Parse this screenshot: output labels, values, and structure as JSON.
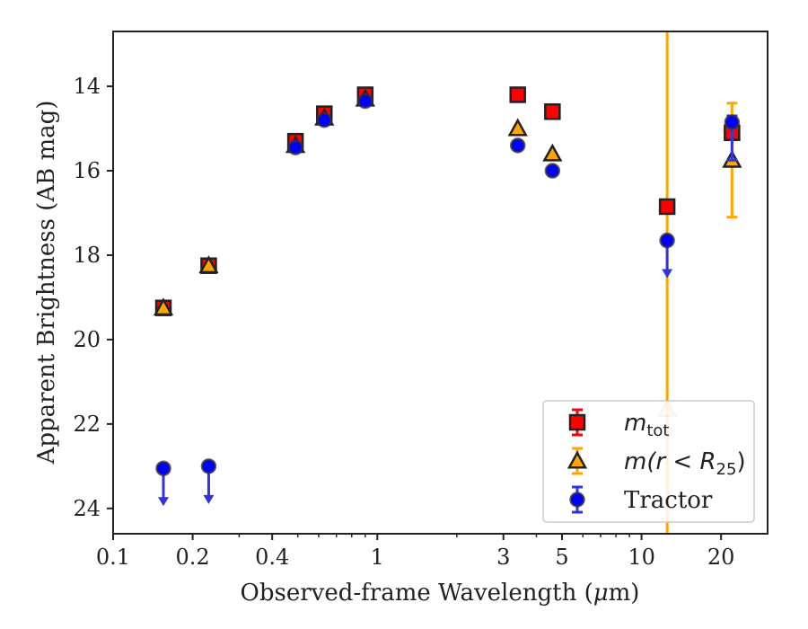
{
  "chart_data": {
    "type": "scatter",
    "xlabel_prefix": "Observed-frame Wavelength (",
    "xlabel_unit": "μ",
    "xlabel_suffix": "m)",
    "ylabel": "Apparent Brightness (AB mag)",
    "x_scale": "log",
    "xlim": [
      0.1,
      30
    ],
    "ylim": [
      24.6,
      12.7
    ],
    "y_inverted": true,
    "xticks": [
      0.1,
      0.2,
      0.4,
      1,
      3,
      5,
      10,
      20
    ],
    "xtick_labels": [
      "0.1",
      "0.2",
      "0.4",
      "1",
      "3",
      "5",
      "10",
      "20"
    ],
    "yticks": [
      14,
      16,
      18,
      20,
      22,
      24
    ],
    "ytick_labels": [
      "14",
      "16",
      "18",
      "20",
      "22",
      "24"
    ],
    "grid": false,
    "legend_position": "lower-right",
    "vertical_line": {
      "x": 12.5,
      "color": "#ffa500"
    },
    "series": [
      {
        "key": "mtot",
        "legend_main": "m",
        "legend_sub": "tot",
        "marker": "square",
        "color": "#ff0000",
        "errcolor": "#ff0000",
        "points": [
          {
            "x": 0.155,
            "y": 19.25
          },
          {
            "x": 0.23,
            "y": 18.25
          },
          {
            "x": 0.49,
            "y": 15.3
          },
          {
            "x": 0.63,
            "y": 14.65
          },
          {
            "x": 0.9,
            "y": 14.2
          },
          {
            "x": 3.4,
            "y": 14.2
          },
          {
            "x": 4.6,
            "y": 14.6
          },
          {
            "x": 12.5,
            "y": 16.85
          },
          {
            "x": 22,
            "y": 15.1
          }
        ]
      },
      {
        "key": "mr25",
        "legend_main": "m(r < R",
        "legend_sub": "25",
        "legend_close": ")",
        "marker": "triangle",
        "color": "#ffa500",
        "errcolor": "#ffa500",
        "points": [
          {
            "x": 0.155,
            "y": 19.25
          },
          {
            "x": 0.23,
            "y": 18.25
          },
          {
            "x": 0.49,
            "y": 15.4
          },
          {
            "x": 0.63,
            "y": 14.75
          },
          {
            "x": 0.9,
            "y": 14.3
          },
          {
            "x": 3.4,
            "y": 15.0
          },
          {
            "x": 4.6,
            "y": 15.6
          },
          {
            "x": 12.5,
            "y": 21.65,
            "faded": true
          },
          {
            "x": 22,
            "y": 15.75,
            "yerr": [
              1.35,
              1.35
            ]
          }
        ]
      },
      {
        "key": "tractor",
        "legend_main": "Tractor",
        "marker": "circle",
        "color": "#0000ff",
        "errcolor": "#3333dd",
        "points": [
          {
            "x": 0.155,
            "y": 23.05,
            "upper_limit": true
          },
          {
            "x": 0.23,
            "y": 23.0,
            "upper_limit": true
          },
          {
            "x": 0.49,
            "y": 15.45
          },
          {
            "x": 0.63,
            "y": 14.8
          },
          {
            "x": 0.9,
            "y": 14.35
          },
          {
            "x": 3.4,
            "y": 15.4
          },
          {
            "x": 4.6,
            "y": 16.0
          },
          {
            "x": 12.5,
            "y": 17.65,
            "upper_limit": true
          },
          {
            "x": 22,
            "y": 14.85,
            "yerr": [
              0.15,
              0.9
            ]
          }
        ]
      }
    ]
  }
}
